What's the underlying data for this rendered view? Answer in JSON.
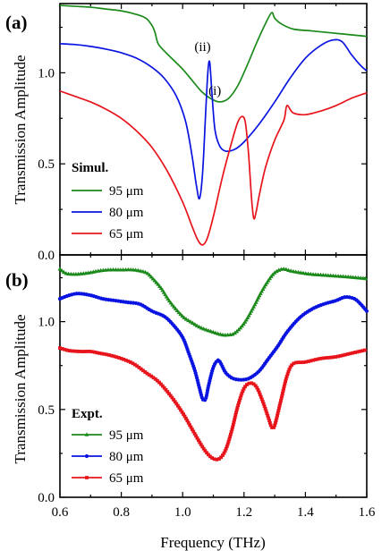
{
  "colors": {
    "green": "#1b8a1b",
    "blue": "#0a14e0",
    "red": "#e8141c"
  },
  "chart_data": [
    {
      "type": "line",
      "panel_label": "(a)",
      "ylabel": "Transmission Amplitude",
      "xlabel": "",
      "xlim": [
        0.6,
        1.6
      ],
      "ylim": [
        0.0,
        1.38
      ],
      "yticks": [
        0.0,
        0.5,
        1.0
      ],
      "ytick_labels": [
        "0.0",
        "0.5",
        "1.0"
      ],
      "xticks": [
        0.6,
        0.8,
        1.0,
        1.2,
        1.4,
        1.6
      ],
      "legend_title": "Simul.",
      "legend_placement": "bottom-left",
      "annotations": [
        {
          "text": "(ii)",
          "x": 1.065,
          "y": 1.12
        },
        {
          "text": "(i)",
          "x": 1.105,
          "y": 0.88
        }
      ],
      "series": [
        {
          "name": "95 μm",
          "color_key": "green",
          "marker": "none",
          "x": [
            0.6,
            0.65,
            0.7,
            0.75,
            0.8,
            0.85,
            0.88,
            0.9,
            0.91,
            0.92,
            0.94,
            0.97,
            1.0,
            1.03,
            1.06,
            1.09,
            1.12,
            1.15,
            1.18,
            1.21,
            1.24,
            1.27,
            1.29,
            1.3,
            1.32,
            1.36,
            1.42,
            1.48,
            1.54,
            1.6
          ],
          "y": [
            1.37,
            1.365,
            1.36,
            1.35,
            1.34,
            1.32,
            1.3,
            1.26,
            1.22,
            1.16,
            1.12,
            1.07,
            1.02,
            0.96,
            0.9,
            0.86,
            0.84,
            0.86,
            0.93,
            1.04,
            1.16,
            1.27,
            1.33,
            1.3,
            1.27,
            1.24,
            1.23,
            1.22,
            1.21,
            1.2
          ]
        },
        {
          "name": "80 μm",
          "color_key": "blue",
          "marker": "none",
          "x": [
            0.6,
            0.65,
            0.7,
            0.75,
            0.8,
            0.85,
            0.9,
            0.94,
            0.98,
            1.01,
            1.03,
            1.045,
            1.055,
            1.065,
            1.075,
            1.082,
            1.088,
            1.095,
            1.105,
            1.12,
            1.14,
            1.17,
            1.2,
            1.25,
            1.3,
            1.35,
            1.4,
            1.45,
            1.49,
            1.52,
            1.55,
            1.58,
            1.6
          ],
          "y": [
            1.16,
            1.155,
            1.145,
            1.13,
            1.11,
            1.08,
            1.03,
            0.97,
            0.87,
            0.73,
            0.55,
            0.38,
            0.31,
            0.45,
            0.78,
            1.0,
            1.06,
            0.9,
            0.69,
            0.6,
            0.57,
            0.58,
            0.62,
            0.72,
            0.84,
            0.97,
            1.08,
            1.15,
            1.18,
            1.17,
            1.1,
            1.04,
            1.01
          ]
        },
        {
          "name": "65 μm",
          "color_key": "red",
          "marker": "none",
          "x": [
            0.6,
            0.65,
            0.7,
            0.75,
            0.8,
            0.85,
            0.9,
            0.95,
            1.0,
            1.03,
            1.05,
            1.065,
            1.08,
            1.1,
            1.13,
            1.16,
            1.18,
            1.195,
            1.205,
            1.215,
            1.225,
            1.232,
            1.24,
            1.25,
            1.27,
            1.3,
            1.33,
            1.34,
            1.36,
            1.4,
            1.45,
            1.5,
            1.55,
            1.6
          ],
          "y": [
            0.9,
            0.87,
            0.84,
            0.8,
            0.75,
            0.68,
            0.59,
            0.46,
            0.29,
            0.16,
            0.08,
            0.055,
            0.09,
            0.21,
            0.43,
            0.62,
            0.73,
            0.76,
            0.72,
            0.55,
            0.3,
            0.2,
            0.24,
            0.33,
            0.48,
            0.63,
            0.74,
            0.82,
            0.78,
            0.77,
            0.79,
            0.82,
            0.86,
            0.89
          ]
        }
      ]
    },
    {
      "type": "line",
      "panel_label": "(b)",
      "ylabel": "Transmission Amplitude",
      "xlabel": "Frequency (THz)",
      "xlim": [
        0.6,
        1.6
      ],
      "ylim": [
        0.0,
        1.38
      ],
      "yticks": [
        0.0,
        0.5,
        1.0
      ],
      "ytick_labels": [
        "0.0",
        "0.5",
        "1.0"
      ],
      "xticks": [
        0.6,
        0.8,
        1.0,
        1.2,
        1.4,
        1.6
      ],
      "xtick_labels": [
        "0.6",
        "0.8",
        "1.0",
        "1.2",
        "1.4",
        "1.6"
      ],
      "legend_title": "Expt.",
      "legend_placement": "bottom-left",
      "series": [
        {
          "name": "95 μm",
          "color_key": "green",
          "marker": "triangle",
          "x": [
            0.6,
            0.62,
            0.65,
            0.68,
            0.7,
            0.73,
            0.76,
            0.8,
            0.84,
            0.88,
            0.9,
            0.93,
            0.96,
            1.0,
            1.03,
            1.06,
            1.1,
            1.13,
            1.15,
            1.17,
            1.2,
            1.23,
            1.26,
            1.29,
            1.31,
            1.33,
            1.35,
            1.38,
            1.42,
            1.46,
            1.5,
            1.54,
            1.57,
            1.6
          ],
          "y": [
            1.3,
            1.275,
            1.27,
            1.275,
            1.28,
            1.29,
            1.295,
            1.295,
            1.295,
            1.28,
            1.25,
            1.19,
            1.11,
            1.03,
            0.995,
            0.965,
            0.94,
            0.925,
            0.925,
            0.935,
            0.99,
            1.08,
            1.18,
            1.26,
            1.29,
            1.3,
            1.29,
            1.28,
            1.27,
            1.265,
            1.26,
            1.255,
            1.25,
            1.245
          ]
        },
        {
          "name": "80 μm",
          "color_key": "blue",
          "marker": "circle",
          "x": [
            0.6,
            0.63,
            0.66,
            0.7,
            0.74,
            0.78,
            0.82,
            0.86,
            0.9,
            0.94,
            0.97,
            1.0,
            1.02,
            1.04,
            1.055,
            1.065,
            1.075,
            1.085,
            1.1,
            1.115,
            1.125,
            1.14,
            1.16,
            1.18,
            1.2,
            1.22,
            1.25,
            1.28,
            1.31,
            1.34,
            1.38,
            1.42,
            1.46,
            1.5,
            1.53,
            1.56,
            1.58,
            1.6
          ],
          "y": [
            1.13,
            1.15,
            1.16,
            1.15,
            1.13,
            1.12,
            1.11,
            1.1,
            1.06,
            1.03,
            0.98,
            0.91,
            0.82,
            0.72,
            0.62,
            0.56,
            0.56,
            0.64,
            0.74,
            0.78,
            0.76,
            0.71,
            0.68,
            0.67,
            0.67,
            0.68,
            0.72,
            0.79,
            0.86,
            0.94,
            1.02,
            1.07,
            1.1,
            1.12,
            1.14,
            1.13,
            1.1,
            1.06
          ]
        },
        {
          "name": "65 μm",
          "color_key": "red",
          "marker": "square",
          "x": [
            0.6,
            0.63,
            0.67,
            0.7,
            0.73,
            0.76,
            0.8,
            0.84,
            0.88,
            0.92,
            0.96,
            1.0,
            1.03,
            1.06,
            1.08,
            1.1,
            1.12,
            1.14,
            1.16,
            1.18,
            1.2,
            1.22,
            1.24,
            1.26,
            1.28,
            1.29,
            1.3,
            1.32,
            1.34,
            1.36,
            1.4,
            1.45,
            1.5,
            1.55,
            1.6
          ],
          "y": [
            0.85,
            0.835,
            0.83,
            0.83,
            0.82,
            0.81,
            0.79,
            0.76,
            0.71,
            0.66,
            0.58,
            0.48,
            0.39,
            0.3,
            0.25,
            0.22,
            0.22,
            0.27,
            0.38,
            0.52,
            0.62,
            0.65,
            0.63,
            0.55,
            0.45,
            0.4,
            0.41,
            0.55,
            0.69,
            0.76,
            0.77,
            0.79,
            0.8,
            0.82,
            0.84
          ]
        }
      ]
    }
  ]
}
